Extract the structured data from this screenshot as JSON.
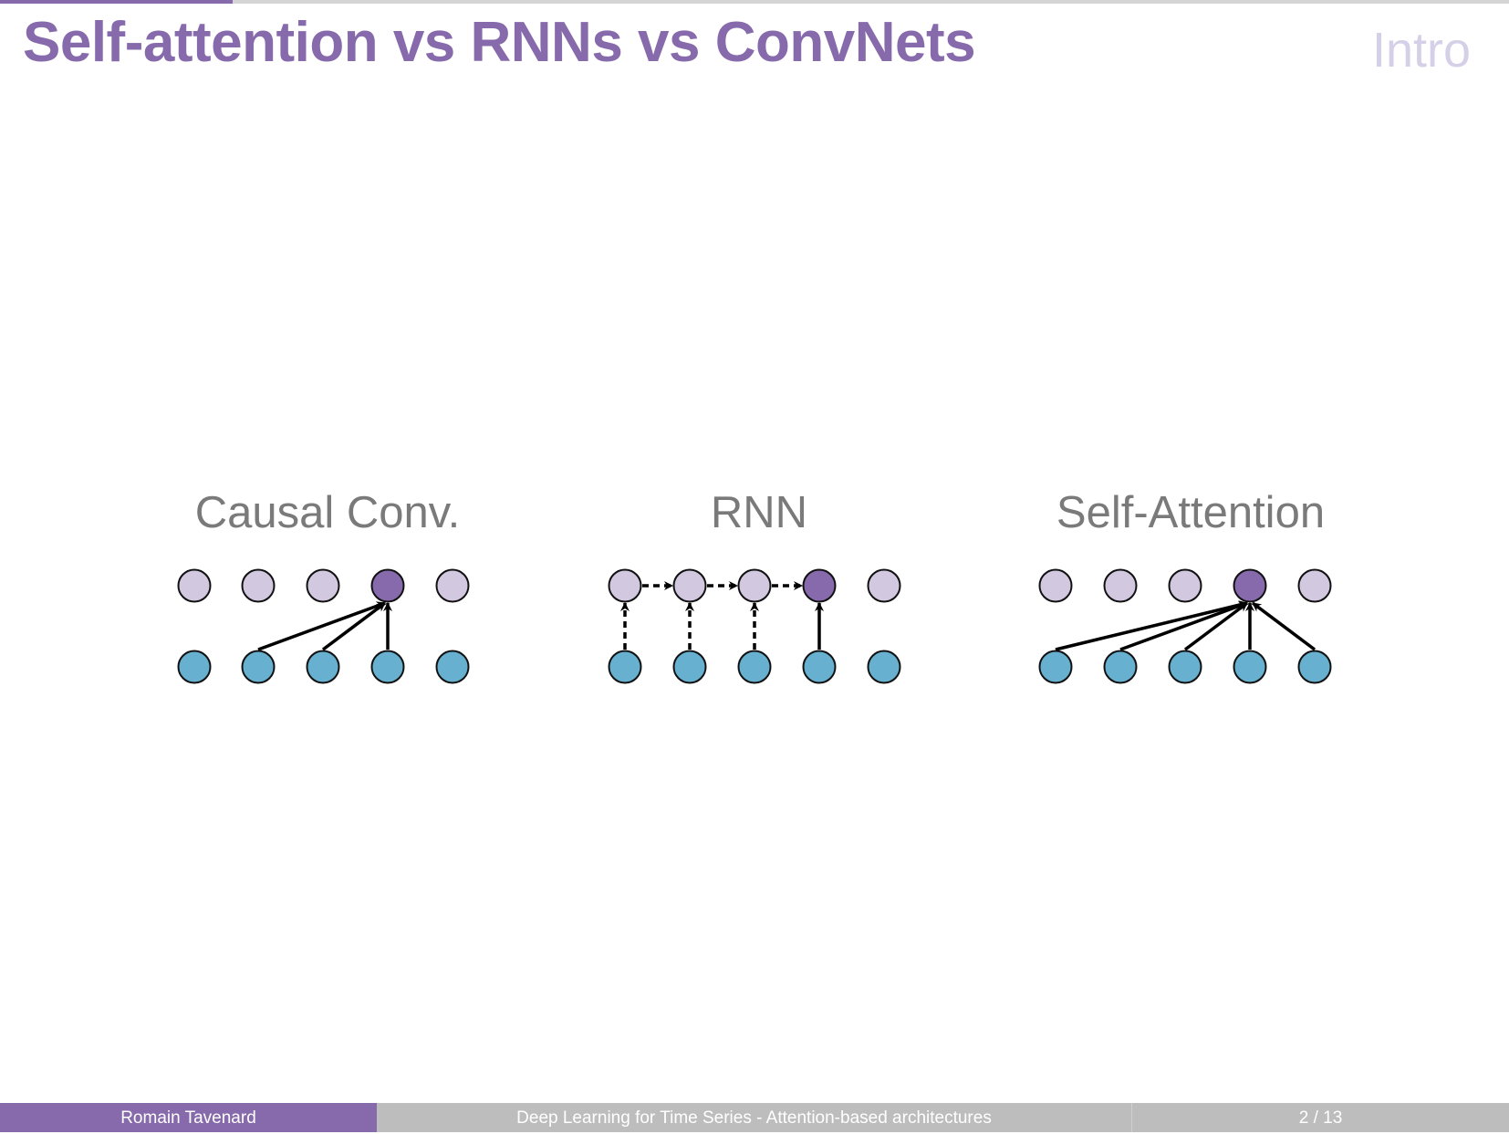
{
  "header": {
    "title": "Self-attention vs RNNs vs ConvNets",
    "section": "Intro"
  },
  "progress": {
    "fraction": 0.154
  },
  "diagram": {
    "panels": [
      {
        "label": "Causal Conv.",
        "highlighted_output": 3,
        "connections": [
          1,
          2,
          3
        ],
        "recurrent": false
      },
      {
        "label": "RNN",
        "highlighted_output": 3,
        "connections": [
          0,
          1,
          2,
          3
        ],
        "recurrent": true
      },
      {
        "label": "Self-Attention",
        "highlighted_output": 3,
        "connections": [
          0,
          1,
          2,
          3,
          4
        ],
        "recurrent": false
      }
    ],
    "nodes_per_row": 5
  },
  "footer": {
    "author": "Romain Tavenard",
    "talk_title": "Deep Learning for Time Series - Attention-based architectures",
    "page": "2 / 13"
  },
  "colors": {
    "accent": "#866aab",
    "hidden_node": "#d2c8e0",
    "input_node": "#67b0cf",
    "highlight_node": "#866aab"
  }
}
